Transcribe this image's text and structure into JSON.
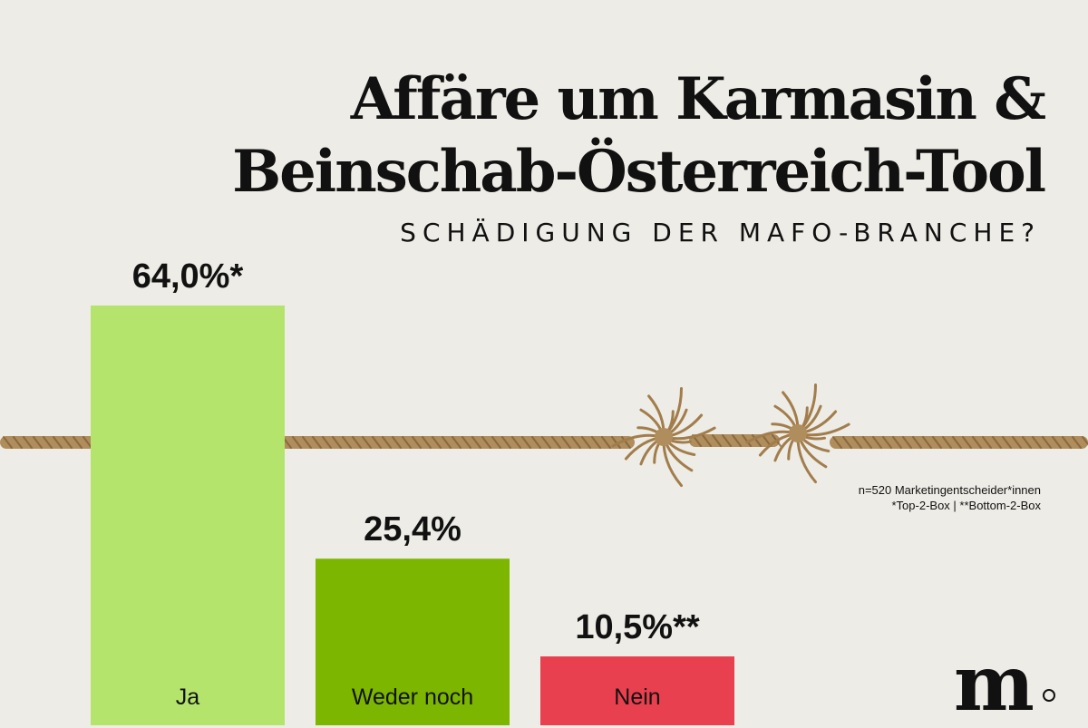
{
  "title_lines": [
    "Affäre um Karmasin &",
    "Beinschab-Österreich-Tool"
  ],
  "subtitle": "SCHÄDIGUNG DER MAFO-BRANCHE?",
  "note_lines": [
    "n=520 Marketingentscheider*innen",
    "*Top-2-Box | **Bottom-2-Box"
  ],
  "logo": {
    "letter": "m"
  },
  "colors": {
    "background": "#eeece6",
    "ja": "#b5e46d",
    "weder_noch": "#7db600",
    "nein": "#e8404f",
    "rope": "#b08d5c"
  },
  "chart_data": {
    "type": "bar",
    "title": "Affäre um Karmasin & Beinschab-Österreich-Tool",
    "subtitle": "SCHÄDIGUNG DER MAFO-BRANCHE?",
    "categories": [
      "Ja",
      "Weder noch",
      "Nein"
    ],
    "values": [
      64.0,
      25.4,
      10.5
    ],
    "value_labels": [
      "64,0%*",
      "25,4%",
      "10,5%**"
    ],
    "colors": [
      "#b5e46d",
      "#7db600",
      "#e8404f"
    ],
    "ylim": [
      0,
      100
    ],
    "grid": false,
    "legend": "none",
    "xlabel": "",
    "ylabel": ""
  }
}
